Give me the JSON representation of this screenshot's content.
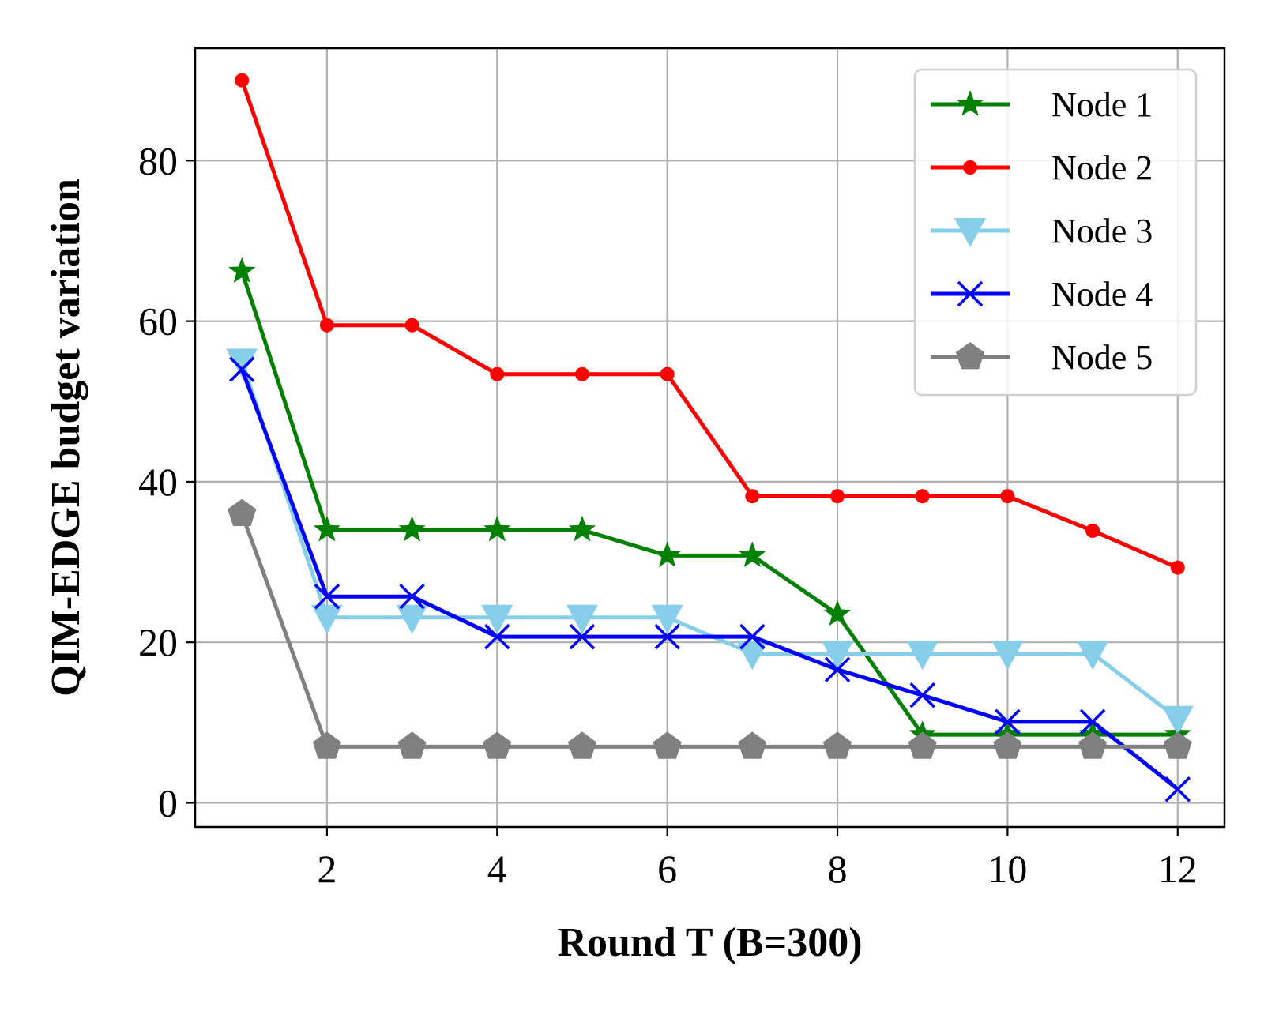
{
  "chart_data": {
    "type": "line",
    "title": "",
    "xlabel": "Round T (B=300)",
    "ylabel": "QIM-EDGE budget variation",
    "xlim": [
      0.45,
      12.55
    ],
    "ylim": [
      -3,
      94
    ],
    "x_ticks": [
      2,
      4,
      6,
      8,
      10,
      12
    ],
    "y_ticks": [
      0,
      20,
      40,
      60,
      80
    ],
    "grid": true,
    "legend_position": "top-right",
    "x": [
      1,
      2,
      3,
      4,
      5,
      6,
      7,
      8,
      9,
      10,
      11,
      12
    ],
    "series": [
      {
        "name": "Node 1",
        "color": "#008000",
        "marker": "star",
        "values": [
          66.2,
          34.0,
          34.0,
          34.0,
          34.0,
          30.8,
          30.8,
          23.5,
          8.5,
          8.5,
          8.5,
          8.5
        ]
      },
      {
        "name": "Node 2",
        "color": "#ff0000",
        "marker": "circle",
        "values": [
          90.0,
          59.5,
          59.5,
          53.4,
          53.4,
          53.4,
          38.2,
          38.2,
          38.2,
          38.2,
          33.9,
          29.3
        ]
      },
      {
        "name": "Node 3",
        "color": "#87ceeb",
        "marker": "triangle-down",
        "values": [
          55.0,
          23.1,
          23.1,
          23.1,
          23.1,
          23.1,
          18.6,
          18.6,
          18.6,
          18.6,
          18.6,
          10.5
        ]
      },
      {
        "name": "Node 4",
        "color": "#0000ff",
        "marker": "x",
        "values": [
          54.0,
          25.7,
          25.7,
          20.7,
          20.7,
          20.7,
          20.7,
          16.6,
          13.4,
          10.1,
          10.1,
          1.7
        ]
      },
      {
        "name": "Node 5",
        "color": "#808080",
        "marker": "pentagon",
        "values": [
          36.0,
          7.0,
          7.0,
          7.0,
          7.0,
          7.0,
          7.0,
          7.0,
          7.0,
          7.0,
          7.0,
          7.0
        ]
      }
    ]
  }
}
